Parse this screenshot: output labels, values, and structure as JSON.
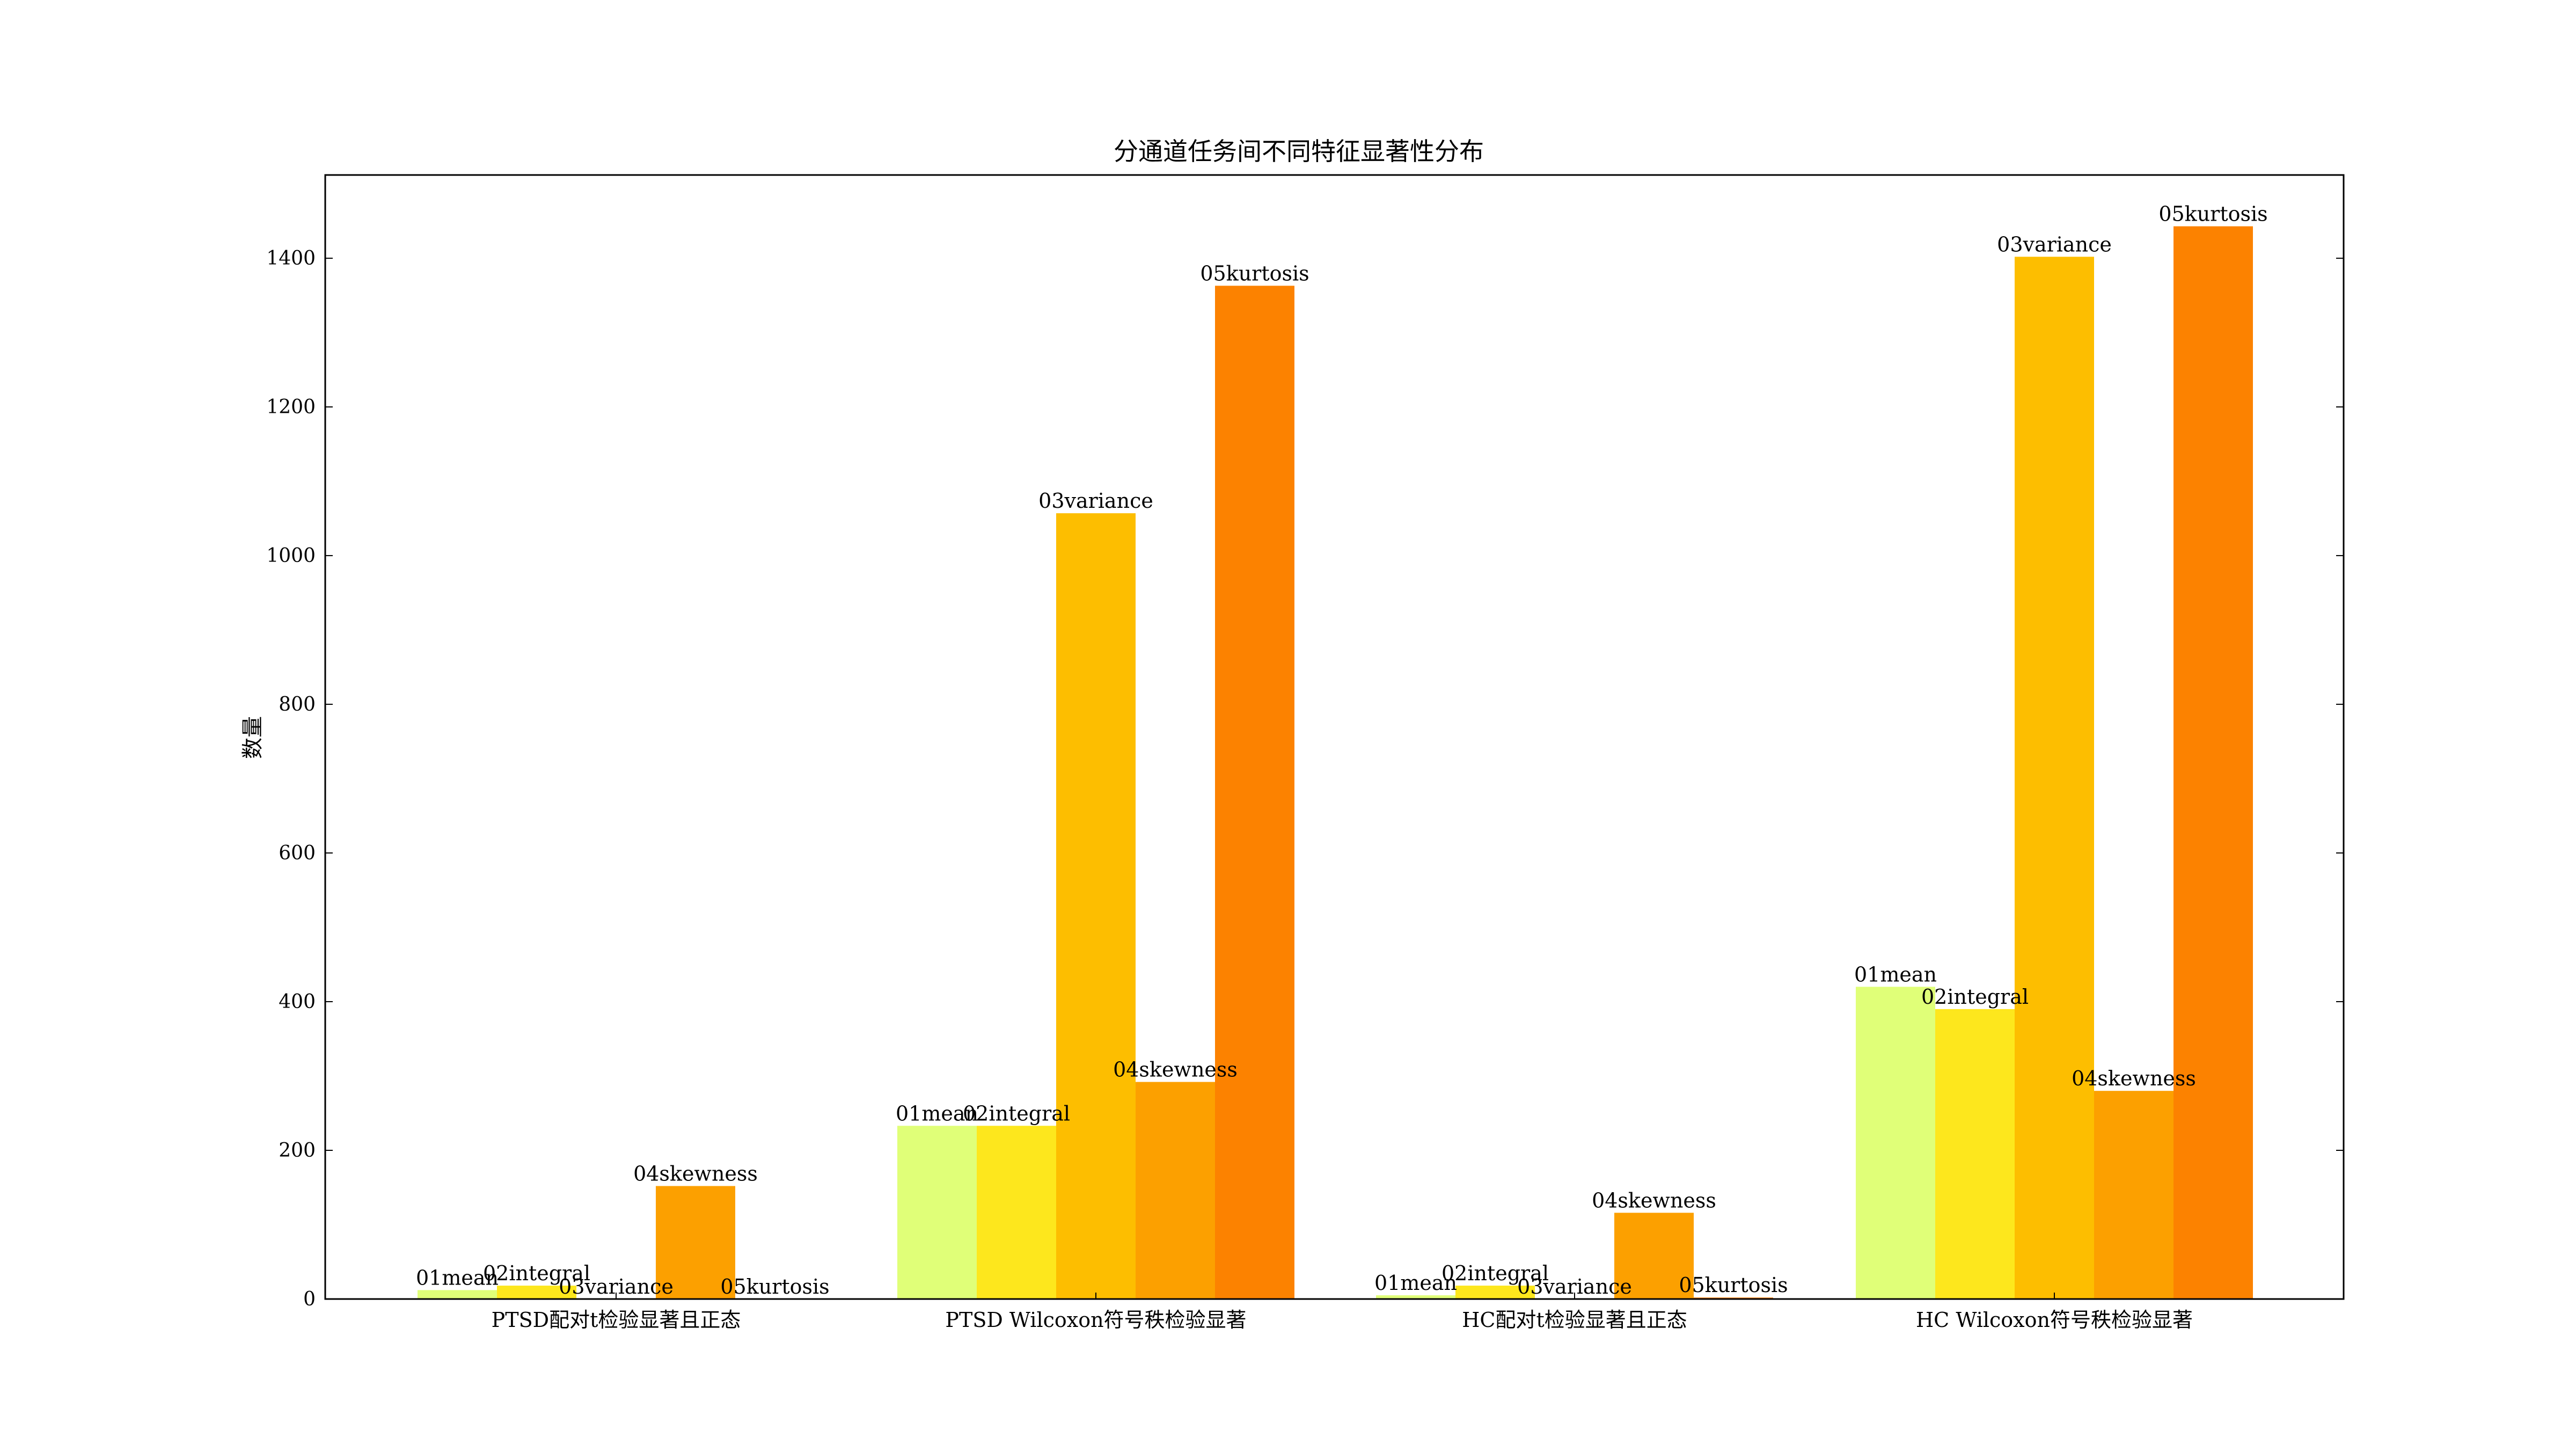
{
  "chart_data": {
    "type": "bar",
    "title": "分通道任务间不同特征显著性分布",
    "xlabel": "",
    "ylabel": "数量",
    "ylim": [
      0,
      1512
    ],
    "yticks": [
      0,
      200,
      400,
      600,
      800,
      1000,
      1200,
      1400
    ],
    "grid": false,
    "legend": "none",
    "categories": [
      "PTSD配对t检验显著且正态",
      "PTSD Wilcoxon符号秩检验显著",
      "HC配对t检验显著且正态",
      "HC Wilcoxon符号秩检验显著"
    ],
    "series": [
      {
        "name": "01mean",
        "color": "#e0ff78",
        "values": [
          12,
          233,
          5,
          420
        ]
      },
      {
        "name": "02integral",
        "color": "#fde71d",
        "values": [
          18,
          233,
          18,
          390
        ]
      },
      {
        "name": "03variance",
        "color": "#fdbe00",
        "values": [
          0,
          1057,
          0,
          1402
        ]
      },
      {
        "name": "04skewness",
        "color": "#fca000",
        "values": [
          152,
          292,
          116,
          280
        ]
      },
      {
        "name": "05kurtosis",
        "color": "#fc8200",
        "values": [
          0,
          1363,
          2,
          1443
        ]
      }
    ]
  }
}
